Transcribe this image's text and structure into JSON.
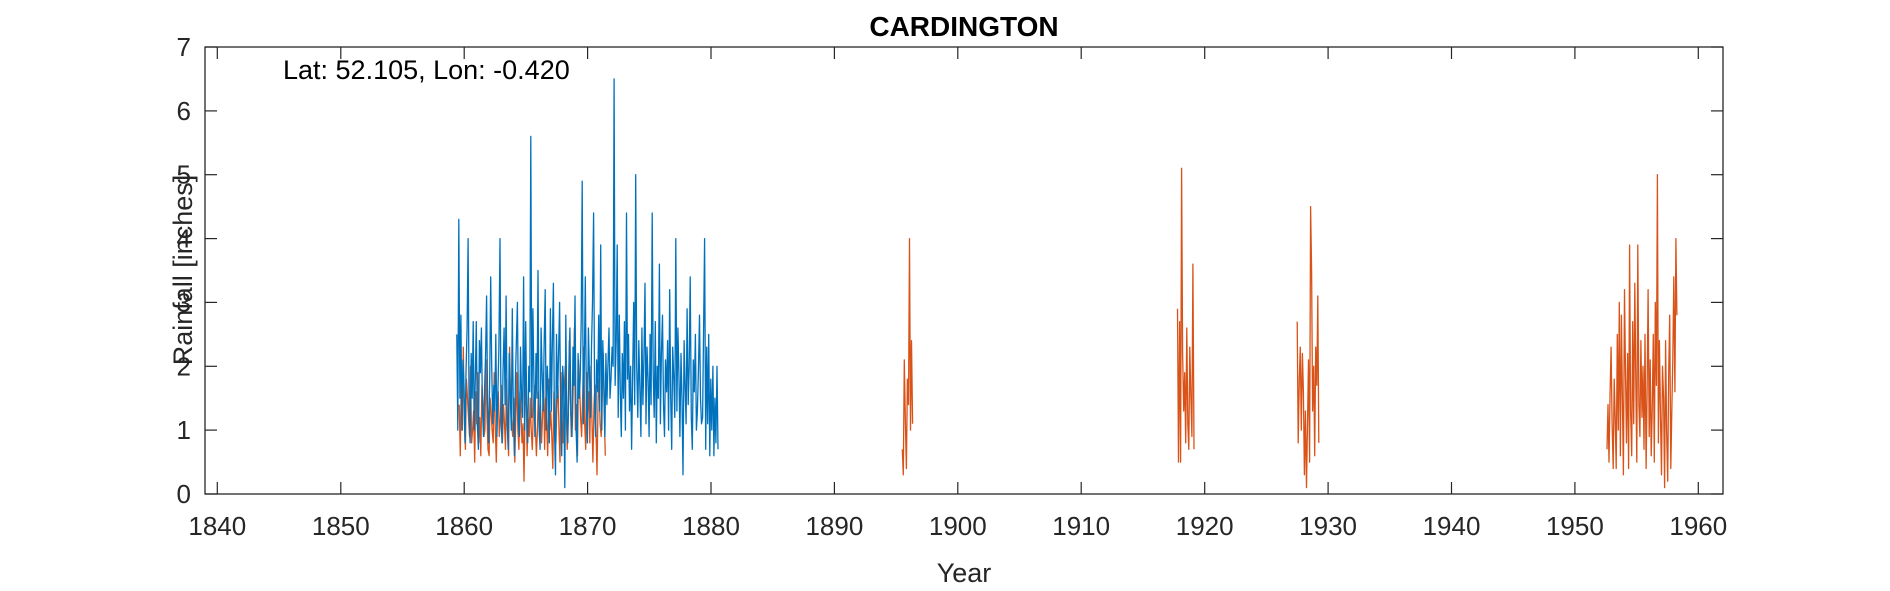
{
  "chart_data": {
    "type": "line",
    "title": "CARDINGTON",
    "xlabel": "Year",
    "ylabel": "Rainfall [inches]",
    "annotation": "Lat: 52.105, Lon: -0.420",
    "xlim": [
      1839,
      1962
    ],
    "ylim": [
      0,
      7
    ],
    "x_ticks": [
      1840,
      1850,
      1860,
      1870,
      1880,
      1890,
      1900,
      1910,
      1920,
      1930,
      1940,
      1950,
      1960
    ],
    "y_ticks": [
      0,
      1,
      2,
      3,
      4,
      5,
      6,
      7
    ],
    "grid": false,
    "box": true,
    "series": [
      {
        "color": "#D95319",
        "segments": [
          {
            "x_start": 1859.6,
            "values": [
              1.4,
              0.6,
              1.9,
              1.0,
              2.3,
              1.1,
              0.7,
              1.8,
              1.5,
              1.2,
              0.9,
              2.0,
              0.8,
              1.0,
              1.3,
              0.5,
              1.6,
              1.1,
              1.9,
              0.8,
              1.2,
              0.6,
              1.7,
              1.4,
              0.9,
              1.0,
              2.1,
              1.2,
              0.7,
              0.6,
              1.5,
              1.3,
              1.0,
              0.8,
              1.9,
              1.1,
              0.5,
              1.3,
              1.6,
              0.9,
              1.2,
              1.7,
              0.8,
              1.4,
              1.1,
              0.7,
              1.8,
              1.0,
              0.6,
              2.3,
              1.4,
              1.1,
              0.9,
              1.5,
              0.5,
              1.2,
              1.9,
              1.0,
              0.7,
              1.6,
              1.3,
              0.8,
              1.1,
              0.2,
              1.4,
              1.8,
              0.6,
              1.2,
              0.9,
              1.5,
              1.0,
              0.7,
              1.3,
              1.7,
              1.1,
              0.6,
              1.0,
              1.6,
              0.9,
              1.4,
              0.8,
              1.2,
              1.9,
              0.7,
              1.5,
              1.1,
              0.6,
              1.8,
              1.0,
              1.3,
              0.9,
              0.4,
              1.6,
              1.2,
              0.8,
              1.4,
              1.7,
              1.0,
              0.5,
              1.9,
              1.1,
              0.8,
              1.6,
              2.0,
              1.3,
              0.7,
              1.2,
              2.4,
              1.5,
              0.9,
              1.1,
              1.8,
              2.6,
              1.0,
              1.4,
              0.6,
              2.1,
              1.7,
              1.2,
              0.9,
              1.5,
              2.3,
              1.1,
              0.7,
              1.9,
              1.3,
              1.6,
              0.8,
              2.0,
              1.2,
              0.5,
              1.4,
              1.7,
              1.0,
              0.3,
              1.5,
              1.8,
              1.1,
              0.9,
              1.6,
              2.2,
              1.3,
              0.6
            ]
          },
          {
            "x_start": 1895.5,
            "values": [
              0.7,
              0.3,
              2.1,
              1.1,
              0.4,
              1.8,
              1.4,
              4.0,
              1.0,
              2.4,
              1.1
            ]
          },
          {
            "x_start": 1917.8,
            "values": [
              2.9,
              0.5,
              2.7,
              0.5,
              5.1,
              2.2,
              1.3,
              1.9,
              0.8,
              2.6,
              1.1,
              0.7,
              2.3,
              1.5,
              0.9,
              3.6,
              0.7
            ]
          },
          {
            "x_start": 1927.5,
            "values": [
              2.7,
              0.8,
              1.8,
              2.3,
              1.0,
              2.2,
              1.6,
              0.3,
              1.3,
              0.1,
              1.1,
              2.1,
              0.5,
              4.5,
              3.5,
              1.3,
              2.0,
              0.6,
              2.3,
              1.7,
              3.1,
              0.8
            ]
          },
          {
            "x_start": 1952.6,
            "values": [
              0.7,
              1.4,
              0.5,
              1.6,
              2.3,
              1.1,
              0.4,
              1.8,
              1.2,
              0.4,
              2.5,
              1.0,
              3.0,
              0.6,
              2.8,
              1.5,
              0.3,
              3.2,
              1.9,
              0.8,
              2.2,
              0.4,
              3.9,
              1.3,
              0.6,
              2.7,
              1.1,
              3.3,
              1.8,
              0.5,
              3.9,
              1.4,
              0.9,
              2.4,
              1.2,
              2.0,
              0.7,
              2.5,
              0.4,
              1.6,
              3.2,
              0.9,
              2.1,
              0.6,
              1.3,
              2.5,
              0.5,
              3.0,
              1.7,
              5.0,
              0.8,
              2.4,
              1.2,
              0.3,
              2.0,
              1.5,
              0.1,
              2.4,
              1.0,
              0.2,
              1.9,
              2.8,
              0.4,
              1.3,
              2.1,
              3.4,
              1.6,
              4.0,
              2.8
            ]
          }
        ]
      },
      {
        "color": "#0072BD",
        "segments": [
          {
            "x_start": 1859.4,
            "values": [
              2.5,
              1.0,
              4.3,
              1.5,
              2.8,
              1.0,
              2.1,
              1.7,
              0.8,
              1.9,
              2.6,
              4.0,
              1.3,
              0.8,
              2.2,
              1.5,
              2.7,
              1.0,
              1.8,
              2.7,
              1.1,
              0.7,
              2.4,
              1.9,
              2.6,
              1.3,
              0.9,
              1.6,
              2.2,
              3.1,
              1.4,
              0.8,
              1.8,
              3.4,
              2.0,
              1.1,
              1.7,
              1.3,
              2.5,
              0.9,
              1.6,
              2.3,
              4.0,
              1.2,
              0.8,
              1.9,
              2.6,
              1.4,
              3.1,
              1.1,
              0.7,
              2.2,
              1.6,
              1.0,
              2.9,
              1.3,
              0.6,
              1.8,
              2.4,
              3.0,
              1.1,
              0.9,
              2.3,
              1.5,
              1.2,
              3.4,
              1.0,
              2.7,
              1.4,
              0.8,
              2.0,
              1.6,
              5.6,
              1.2,
              2.9,
              1.8,
              0.9,
              2.2,
              1.5,
              3.5,
              1.1,
              0.7,
              2.6,
              1.9,
              1.3,
              2.4,
              3.2,
              1.0,
              2.0,
              1.6,
              0.8,
              2.9,
              1.3,
              2.4,
              3.3,
              1.0,
              0.3,
              2.5,
              1.5,
              2.2,
              3.0,
              1.4,
              0.6,
              2.0,
              1.7,
              0.1,
              2.8,
              1.2,
              0.8,
              1.9,
              2.6,
              1.3,
              0.9,
              2.3,
              1.7,
              3.1,
              1.0,
              0.5,
              2.2,
              1.5,
              1.8,
              2.7,
              4.9,
              1.1,
              2.0,
              3.4,
              1.4,
              0.8,
              2.6,
              1.9,
              1.2,
              2.3,
              3.0,
              4.4,
              1.5,
              0.9,
              2.1,
              1.6,
              2.8,
              1.3,
              3.9,
              1.0,
              2.4,
              1.8,
              0.9,
              2.2,
              1.4,
              2.0,
              2.6,
              1.5,
              1.8,
              2.3,
              2.0,
              6.5,
              1.7,
              2.4,
              3.9,
              1.2,
              2.8,
              1.6,
              0.9,
              2.2,
              1.5,
              2.7,
              1.0,
              4.4,
              1.8,
              2.5,
              1.3,
              2.0,
              0.7,
              1.8,
              3.0,
              1.4,
              5.0,
              2.0,
              1.2,
              2.4,
              1.7,
              0.9,
              2.6,
              1.4,
              2.1,
              3.3,
              1.1,
              2.3,
              1.8,
              0.9,
              2.5,
              1.4,
              4.4,
              1.9,
              1.2,
              2.7,
              0.8,
              2.0,
              1.5,
              3.6,
              1.1,
              2.2,
              2.8,
              1.4,
              0.9,
              2.1,
              1.6,
              2.4,
              1.0,
              3.2,
              1.5,
              0.7,
              2.3,
              1.8,
              1.2,
              4.0,
              1.3,
              2.6,
              1.9,
              0.9,
              2.2,
              1.5,
              0.3,
              2.4,
              1.7,
              1.1,
              2.9,
              1.4,
              2.0,
              3.4,
              1.2,
              0.7,
              2.1,
              1.6,
              2.5,
              1.0,
              1.3,
              2.0,
              2.8,
              1.5,
              1.1,
              1.2,
              2.6,
              4.0,
              0.7,
              2.3,
              1.1,
              2.5,
              0.6,
              1.8,
              1.0,
              2.0,
              0.6,
              1.5,
              0.8,
              2.0,
              0.7
            ]
          }
        ]
      }
    ]
  }
}
